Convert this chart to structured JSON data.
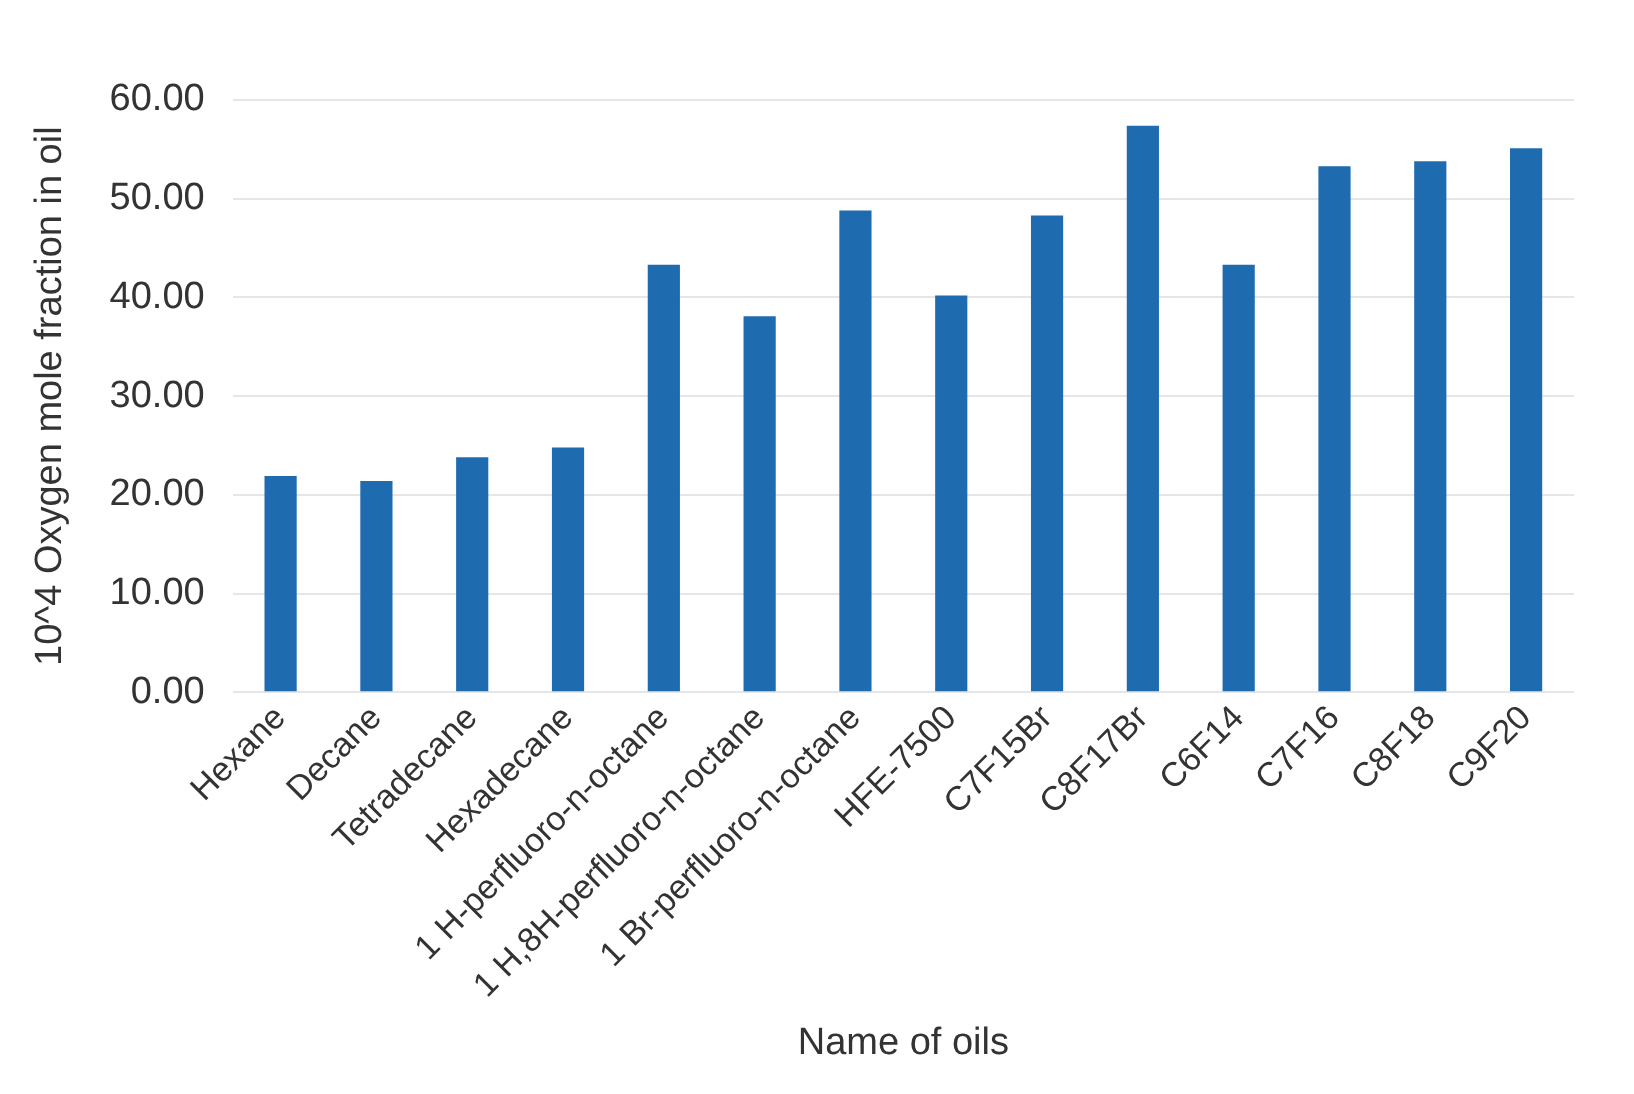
{
  "chart_data": {
    "type": "bar",
    "xlabel": "Name of oils",
    "ylabel": "10^4 Oxygen mole fraction in oil",
    "categories": [
      "Hexane",
      "Decane",
      "Tetradecane",
      "Hexadecane",
      "1 H-perfluoro-n-octane",
      "1 H,8H-perfluoro-n-octane",
      "1 Br-perfluoro-n-octane",
      "HFE-7500",
      "C7F15Br",
      "C8F17Br",
      "C6F14",
      "C7F16",
      "C8F18",
      "C9F20"
    ],
    "values": [
      21.9,
      21.4,
      23.8,
      24.8,
      43.3,
      38.1,
      48.8,
      40.2,
      48.3,
      57.4,
      43.3,
      53.3,
      53.8,
      55.1
    ],
    "color": "#1f6bb0",
    "ylim": [
      0,
      60
    ],
    "yticks": [
      {
        "value": 0,
        "label": "0.00"
      },
      {
        "value": 10,
        "label": "10.00"
      },
      {
        "value": 20,
        "label": "20.00"
      },
      {
        "value": 30,
        "label": "30.00"
      },
      {
        "value": 40,
        "label": "40.00"
      },
      {
        "value": 50,
        "label": "50.00"
      },
      {
        "value": 60,
        "label": "60.00"
      }
    ],
    "grid": "y",
    "legend": false
  }
}
